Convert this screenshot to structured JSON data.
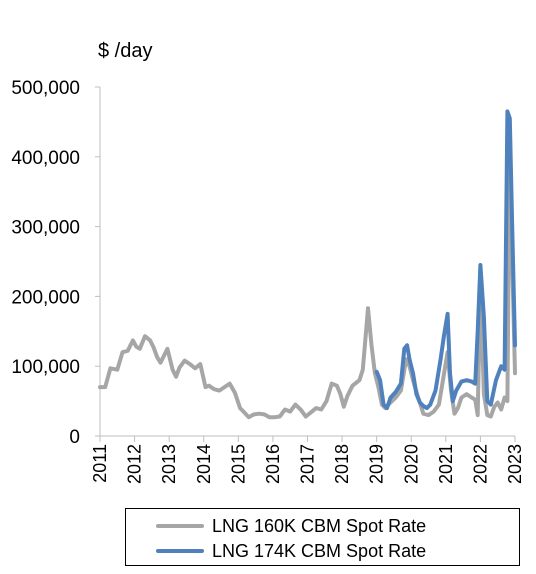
{
  "chart_data": {
    "type": "line",
    "title": "",
    "ylabel": "$ /day",
    "xlabel": "",
    "ylim": [
      0,
      500000
    ],
    "xlim": [
      2011,
      2023
    ],
    "y_ticks": [
      0,
      100000,
      200000,
      300000,
      400000,
      500000
    ],
    "y_tick_labels": [
      "0",
      "100,000",
      "200,000",
      "300,000",
      "400,000",
      "500,000"
    ],
    "x_ticks": [
      2011,
      2012,
      2013,
      2014,
      2015,
      2016,
      2017,
      2018,
      2019,
      2020,
      2021,
      2022,
      2023
    ],
    "x_tick_labels": [
      "2011",
      "2012",
      "2013",
      "2014",
      "2015",
      "2016",
      "2017",
      "2018",
      "2019",
      "2020",
      "2021",
      "2022",
      "2023"
    ],
    "grid": false,
    "legend_position": "bottom",
    "series": [
      {
        "name": "LNG 160K CBM Spot Rate",
        "color": "#a6a6a6",
        "x": [
          2011.0,
          2011.15,
          2011.3,
          2011.5,
          2011.65,
          2011.8,
          2011.95,
          2012.05,
          2012.15,
          2012.3,
          2012.45,
          2012.55,
          2012.65,
          2012.75,
          2012.85,
          2012.95,
          2013.1,
          2013.2,
          2013.3,
          2013.45,
          2013.6,
          2013.75,
          2013.9,
          2014.05,
          2014.15,
          2014.3,
          2014.45,
          2014.6,
          2014.75,
          2014.9,
          2015.05,
          2015.15,
          2015.3,
          2015.45,
          2015.6,
          2015.75,
          2015.9,
          2016.05,
          2016.2,
          2016.35,
          2016.5,
          2016.65,
          2016.8,
          2016.95,
          2017.1,
          2017.25,
          2017.4,
          2017.55,
          2017.7,
          2017.85,
          2017.95,
          2018.05,
          2018.15,
          2018.3,
          2018.4,
          2018.5,
          2018.6,
          2018.75,
          2018.85,
          2018.95,
          2019.05,
          2019.15,
          2019.25,
          2019.4,
          2019.55,
          2019.7,
          2019.85,
          2019.95,
          2020.05,
          2020.2,
          2020.35,
          2020.5,
          2020.65,
          2020.8,
          2020.95,
          2021.05,
          2021.15,
          2021.25,
          2021.35,
          2021.45,
          2021.6,
          2021.75,
          2021.85,
          2021.92,
          2022.0,
          2022.1,
          2022.2,
          2022.3,
          2022.4,
          2022.5,
          2022.6,
          2022.7,
          2022.78,
          2022.85,
          2022.92,
          2023.0
        ],
        "y": [
          70000,
          70000,
          97000,
          95000,
          120000,
          122000,
          137000,
          128000,
          125000,
          143000,
          137000,
          127000,
          113000,
          105000,
          115000,
          125000,
          95000,
          85000,
          98000,
          108000,
          103000,
          97000,
          103000,
          70000,
          72000,
          67000,
          65000,
          70000,
          75000,
          62000,
          40000,
          35000,
          27000,
          31000,
          32000,
          31000,
          27000,
          27000,
          28000,
          38000,
          35000,
          45000,
          38000,
          28000,
          34000,
          40000,
          38000,
          50000,
          75000,
          72000,
          60000,
          42000,
          57000,
          72000,
          76000,
          80000,
          95000,
          183000,
          130000,
          90000,
          70000,
          45000,
          40000,
          48000,
          55000,
          65000,
          110000,
          100000,
          80000,
          55000,
          32000,
          30000,
          35000,
          45000,
          90000,
          120000,
          65000,
          32000,
          40000,
          55000,
          60000,
          55000,
          52000,
          30000,
          220000,
          60000,
          30000,
          28000,
          42000,
          48000,
          38000,
          55000,
          50000,
          445000,
          250000,
          90000
        ]
      },
      {
        "name": "LNG 174K CBM Spot Rate",
        "color": "#4f81bd",
        "x": [
          2019.0,
          2019.1,
          2019.2,
          2019.3,
          2019.4,
          2019.55,
          2019.7,
          2019.8,
          2019.88,
          2019.95,
          2020.05,
          2020.15,
          2020.25,
          2020.35,
          2020.45,
          2020.55,
          2020.7,
          2020.85,
          2020.95,
          2021.05,
          2021.12,
          2021.2,
          2021.3,
          2021.45,
          2021.6,
          2021.75,
          2021.85,
          2021.92,
          2022.0,
          2022.1,
          2022.2,
          2022.3,
          2022.45,
          2022.6,
          2022.7,
          2022.78,
          2022.85,
          2022.92,
          2023.0
        ],
        "y": [
          92000,
          80000,
          45000,
          40000,
          55000,
          63000,
          75000,
          125000,
          130000,
          110000,
          90000,
          60000,
          48000,
          43000,
          40000,
          45000,
          65000,
          110000,
          145000,
          175000,
          90000,
          50000,
          65000,
          78000,
          80000,
          78000,
          75000,
          150000,
          245000,
          170000,
          50000,
          45000,
          80000,
          100000,
          95000,
          465000,
          455000,
          300000,
          130000
        ]
      }
    ]
  }
}
